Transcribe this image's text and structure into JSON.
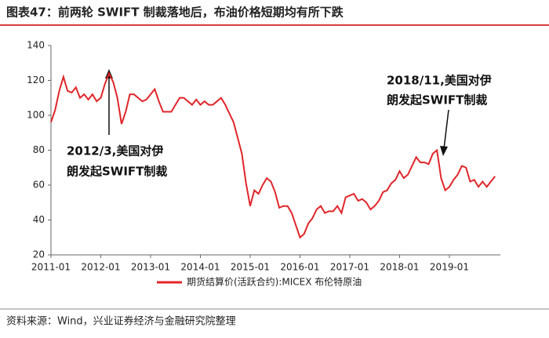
{
  "chart_data": {
    "type": "line",
    "title": "图表47：前两轮 SWIFT 制裁落地后，布油价格短期均有所下跌",
    "source": "资料来源：Wind，兴业证券经济与金融研究院整理",
    "annotations": [
      [
        "2012/3,美国对伊",
        "朗发起SWIFT制裁"
      ],
      [
        "2018/11,美国对伊",
        "朗发起SWIFT制裁"
      ]
    ],
    "x": [
      "2011-01",
      "2011-02",
      "2011-03",
      "2011-04",
      "2011-05",
      "2011-06",
      "2011-07",
      "2011-08",
      "2011-09",
      "2011-10",
      "2011-11",
      "2011-12",
      "2012-01",
      "2012-02",
      "2012-03",
      "2012-04",
      "2012-05",
      "2012-06",
      "2012-07",
      "2012-08",
      "2012-09",
      "2012-10",
      "2012-11",
      "2012-12",
      "2013-01",
      "2013-02",
      "2013-03",
      "2013-04",
      "2013-05",
      "2013-06",
      "2013-07",
      "2013-08",
      "2013-09",
      "2013-10",
      "2013-11",
      "2013-12",
      "2014-01",
      "2014-02",
      "2014-03",
      "2014-04",
      "2014-05",
      "2014-06",
      "2014-07",
      "2014-08",
      "2014-09",
      "2014-10",
      "2014-11",
      "2014-12",
      "2015-01",
      "2015-02",
      "2015-03",
      "2015-04",
      "2015-05",
      "2015-06",
      "2015-07",
      "2015-08",
      "2015-09",
      "2015-10",
      "2015-11",
      "2015-12",
      "2016-01",
      "2016-02",
      "2016-03",
      "2016-04",
      "2016-05",
      "2016-06",
      "2016-07",
      "2016-08",
      "2016-09",
      "2016-10",
      "2016-11",
      "2016-12",
      "2017-01",
      "2017-02",
      "2017-03",
      "2017-04",
      "2017-05",
      "2017-06",
      "2017-07",
      "2017-08",
      "2017-09",
      "2017-10",
      "2017-11",
      "2017-12",
      "2018-01",
      "2018-02",
      "2018-03",
      "2018-04",
      "2018-05",
      "2018-06",
      "2018-07",
      "2018-08",
      "2018-09",
      "2018-10",
      "2018-11",
      "2018-12",
      "2019-01",
      "2019-02",
      "2019-03",
      "2019-04",
      "2019-05",
      "2019-06",
      "2019-07",
      "2019-08",
      "2019-09",
      "2019-10",
      "2019-11",
      "2019-12"
    ],
    "series": [
      {
        "name": "期货结算价(活跃合约):MICEX 布伦特原油",
        "color": "#e0262a",
        "values": [
          96,
          103,
          114,
          122,
          114,
          113,
          116,
          110,
          112,
          109,
          112,
          108,
          110,
          118,
          124,
          119,
          110,
          95,
          102,
          112,
          112,
          110,
          108,
          109,
          112,
          115,
          108,
          102,
          102,
          102,
          106,
          110,
          110,
          108,
          106,
          109,
          106,
          108,
          106,
          106,
          108,
          110,
          106,
          101,
          96,
          87,
          78,
          61,
          48,
          57,
          55,
          60,
          64,
          62,
          56,
          47,
          48,
          48,
          44,
          37,
          30,
          32,
          38,
          41,
          46,
          48,
          44,
          45,
          45,
          48,
          44,
          53,
          54,
          55,
          51,
          52,
          50,
          46,
          48,
          51,
          56,
          57,
          61,
          63,
          68,
          64,
          66,
          71,
          76,
          73,
          73,
          72,
          78,
          80,
          64,
          57,
          59,
          63,
          66,
          71,
          70,
          62,
          63,
          59,
          62,
          59,
          62,
          65
        ]
      }
    ],
    "xticks": [
      "2011-01",
      "2012-01",
      "2013-01",
      "2014-01",
      "2015-01",
      "2016-01",
      "2017-01",
      "2018-01",
      "2019-01"
    ],
    "ylim": [
      20,
      140
    ],
    "yticks": [
      20,
      40,
      60,
      80,
      100,
      120,
      140
    ]
  }
}
